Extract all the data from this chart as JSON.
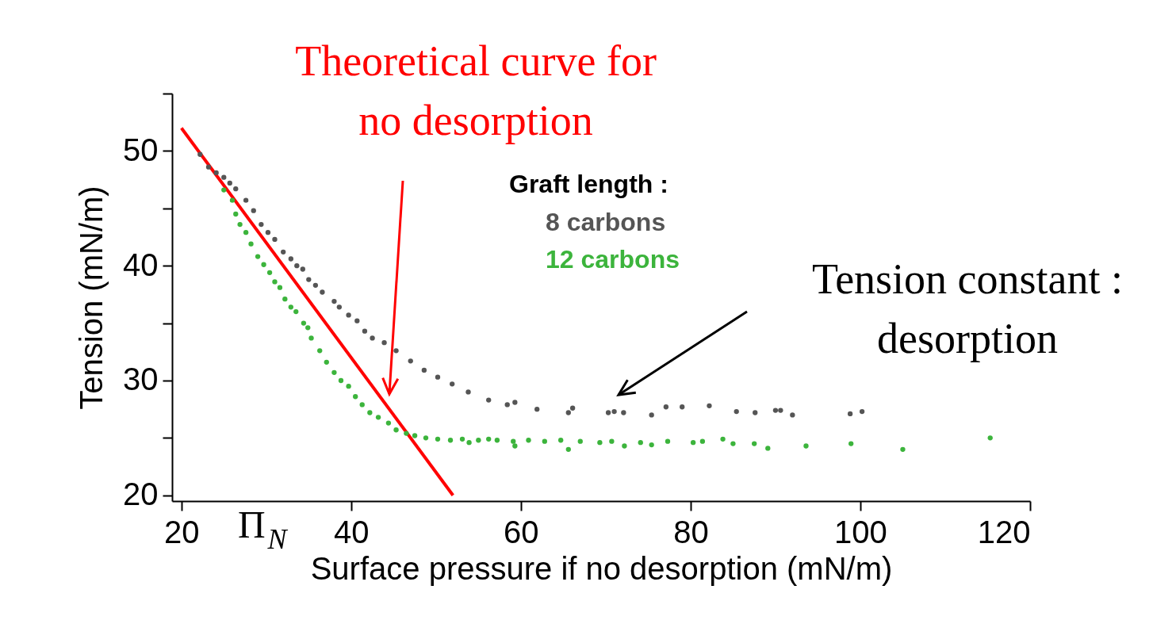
{
  "chart_data": {
    "type": "scatter",
    "xlabel": "Surface pressure if no desorption (mN/m)",
    "ylabel": "Tension (mN/m)",
    "legend_title": "Graft length :",
    "xlim": [
      18.9,
      120
    ],
    "xticks": [
      20,
      40,
      60,
      80,
      100,
      120
    ],
    "ylim": [
      19.5,
      55
    ],
    "yticks": [
      20,
      {
        "value": 25,
        "label": null
      },
      30,
      {
        "value": 35,
        "label": null
      },
      40,
      {
        "value": 45,
        "label": null
      },
      50,
      {
        "value": 55,
        "label": null
      }
    ],
    "grid": false,
    "marker": "circle",
    "annotations": [
      "Theoretical curve for\nno desorption",
      "Tension constant :\ndesorption",
      "Π$_{N}$"
    ],
    "series": [
      {
        "name": "8 carbons",
        "color": "#555555",
        "x": [
          22.2,
          23.2,
          24.1,
          25.0,
          25.7,
          26.4,
          27.6,
          28.5,
          29.4,
          30.2,
          31.0,
          32.0,
          32.9,
          33.6,
          34.3,
          35.0,
          35.8,
          36.6,
          38.0,
          38.6,
          39.7,
          40.7,
          41.6,
          42.5,
          43.9,
          45.3,
          47.0,
          48.6,
          50.2,
          51.9,
          53.8,
          56.2,
          58.4,
          59.3,
          61.9,
          65.6,
          66.1,
          70.3,
          71.0,
          72.1,
          75.4,
          77.1,
          79.0,
          82.2,
          85.4,
          87.6,
          90.0,
          90.6,
          92.0,
          98.8,
          100.2
        ],
        "values": [
          49.7,
          48.6,
          48.1,
          47.7,
          47.2,
          46.7,
          45.7,
          44.8,
          43.6,
          42.9,
          42.3,
          41.2,
          40.6,
          40.0,
          39.7,
          38.8,
          38.3,
          37.7,
          36.9,
          36.4,
          35.7,
          35.2,
          34.3,
          33.7,
          33.3,
          32.6,
          31.7,
          30.9,
          30.3,
          29.7,
          29.0,
          28.3,
          27.9,
          28.1,
          27.5,
          27.2,
          27.6,
          27.2,
          27.3,
          27.2,
          27.0,
          27.7,
          27.7,
          27.8,
          27.3,
          27.2,
          27.4,
          27.4,
          27.0,
          27.1,
          27.3
        ]
      },
      {
        "name": "12 carbons",
        "color": "#3cb43c",
        "x": [
          25.0,
          26.0,
          26.4,
          26.9,
          27.6,
          28.2,
          29.0,
          29.7,
          30.4,
          31.0,
          31.6,
          32.2,
          32.9,
          33.5,
          34.4,
          34.9,
          35.3,
          36.3,
          37.1,
          38.0,
          38.8,
          39.7,
          40.5,
          41.3,
          42.2,
          43.2,
          44.4,
          45.3,
          46.5,
          47.5,
          48.8,
          50.2,
          51.7,
          53.1,
          53.9,
          55.0,
          56.2,
          57.2,
          59.1,
          59.3,
          60.9,
          62.8,
          64.7,
          65.6,
          67.0,
          69.3,
          70.7,
          72.2,
          74.1,
          75.4,
          77.3,
          80.3,
          81.4,
          83.8,
          85.0,
          87.5,
          89.1,
          93.6,
          98.9,
          105.0,
          115.3
        ],
        "values": [
          46.6,
          45.7,
          44.5,
          43.6,
          42.9,
          41.9,
          40.8,
          40.1,
          39.4,
          38.6,
          38.1,
          37.1,
          36.4,
          36.0,
          35.0,
          34.6,
          33.7,
          32.6,
          31.6,
          30.7,
          30.0,
          29.5,
          28.6,
          27.9,
          27.2,
          26.8,
          26.3,
          25.7,
          25.4,
          25.2,
          25.0,
          24.9,
          24.8,
          24.9,
          24.6,
          24.8,
          24.9,
          24.8,
          24.7,
          24.3,
          24.8,
          24.7,
          24.8,
          24.0,
          24.7,
          24.6,
          24.7,
          24.3,
          24.6,
          24.4,
          24.7,
          24.6,
          24.7,
          24.9,
          24.5,
          24.5,
          24.1,
          24.3,
          24.5,
          24.0,
          25.0
        ]
      },
      {
        "type": "line",
        "color": "#ff0000",
        "marker": "none",
        "x": [
          20,
          52
        ],
        "values": [
          52,
          20
        ]
      }
    ]
  }
}
